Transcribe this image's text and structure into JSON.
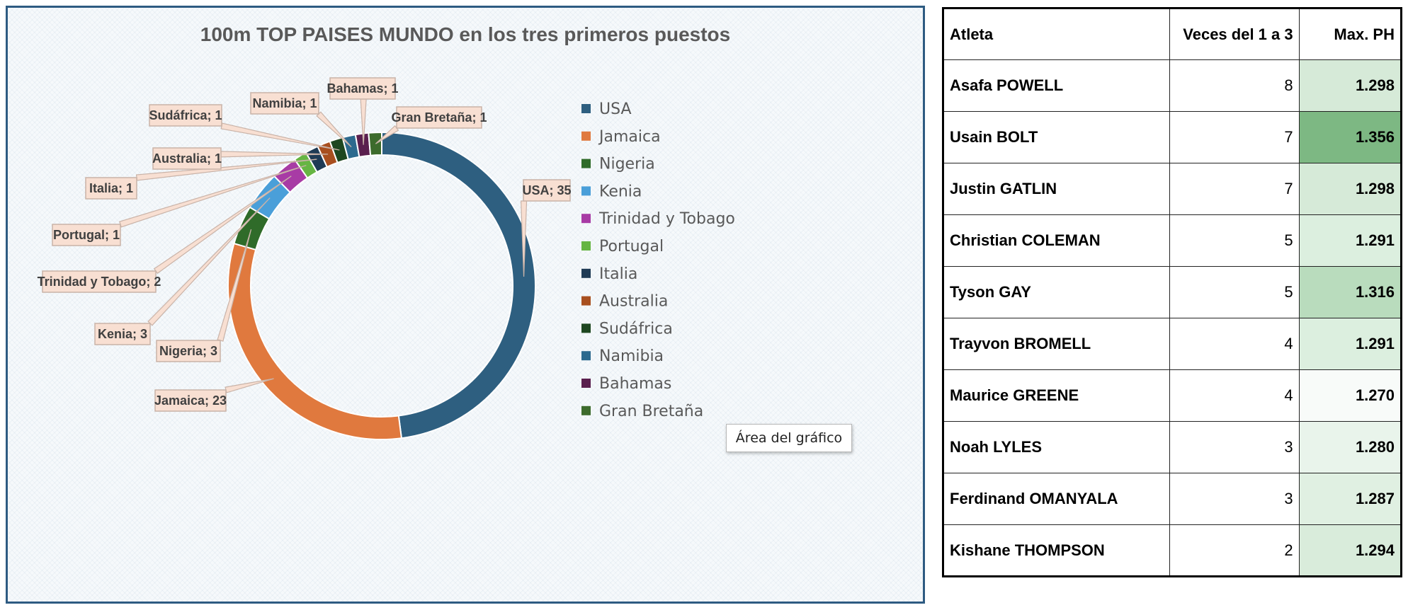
{
  "chart_data": {
    "type": "donut",
    "title": "100m TOP PAISES MUNDO en los tres primeros puestos",
    "categories": [
      "USA",
      "Jamaica",
      "Nigeria",
      "Kenia",
      "Trinidad y Tobago",
      "Portugal",
      "Italia",
      "Australia",
      "Sudáfrica",
      "Namibia",
      "Bahamas",
      "Gran Bretaña"
    ],
    "values": [
      35,
      23,
      3,
      3,
      2,
      1,
      1,
      1,
      1,
      1,
      1,
      1
    ],
    "colors": [
      "#2e5f80",
      "#e0793e",
      "#2f6b29",
      "#4a9fd9",
      "#a83ba5",
      "#66b543",
      "#1f3b55",
      "#a84f1f",
      "#1e4720",
      "#2d6a8e",
      "#5a1f4e",
      "#3d6b2c"
    ],
    "data_labels": [
      "USA; 35",
      "Jamaica; 23",
      "Nigeria; 3",
      "Kenia; 3",
      "Trinidad y Tobago; 2",
      "Portugal; 1",
      "Italia; 1",
      "Australia; 1",
      "Sudáfrica; 1",
      "Namibia; 1",
      "Bahamas; 1",
      "Gran Bretaña; 1"
    ],
    "legend_position": "right"
  },
  "tooltip": "Área del gráfico",
  "table": {
    "headers": [
      "Atleta",
      "Veces del 1 a 3",
      "Max. PH"
    ],
    "rows": [
      [
        "Asafa POWELL",
        "8",
        "1.298"
      ],
      [
        "Usain BOLT",
        "7",
        "1.356"
      ],
      [
        "Justin GATLIN",
        "7",
        "1.298"
      ],
      [
        "Christian COLEMAN",
        "5",
        "1.291"
      ],
      [
        "Tyson GAY",
        "5",
        "1.316"
      ],
      [
        "Trayvon BROMELL",
        "4",
        "1.291"
      ],
      [
        "Maurice GREENE",
        "4",
        "1.270"
      ],
      [
        "Noah LYLES",
        "3",
        "1.280"
      ],
      [
        "Ferdinand OMANYALA",
        "3",
        "1.287"
      ],
      [
        "Kishane THOMPSON",
        "2",
        "1.294"
      ]
    ],
    "heat_colors": [
      "#d6ead8",
      "#7db883",
      "#d6ead8",
      "#dcefdf",
      "#b9dcbd",
      "#dcefdf",
      "#f8fbf9",
      "#e9f4eb",
      "#e0f0e2",
      "#d9ecdb"
    ]
  }
}
